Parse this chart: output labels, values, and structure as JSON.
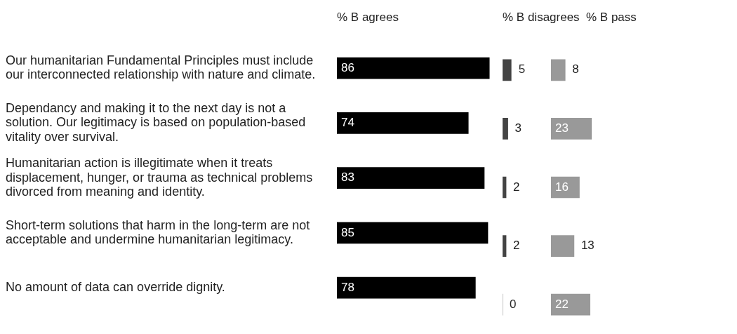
{
  "chart_data": [
    {
      "type": "bar",
      "orientation": "horizontal",
      "title": "% B agrees",
      "categories": [
        "Our humanitarian Fundamental Principles must include our interconnected relationship with nature and climate.",
        "Dependancy and making it to the next day is not a solution. Our legitimacy is based on population-based vitality over survival.",
        "Humanitarian action is illegitimate when it treats displacement, hunger, or trauma as technical problems divorced from meaning and identity.",
        "Short-term solutions that harm in the long-term are not acceptable and undermine humanitarian legitimacy.",
        "No amount of data can override dignity."
      ],
      "values": [
        86,
        74,
        83,
        85,
        78
      ],
      "color": "#000000",
      "data_labels": true,
      "tick_labels": "y",
      "grid": false
    },
    {
      "type": "bar",
      "orientation": "horizontal",
      "title": "% B disagrees",
      "categories": [
        null,
        null,
        null,
        null,
        null
      ],
      "values": [
        5,
        3,
        2,
        2,
        0
      ],
      "color": "#444444",
      "data_labels": true,
      "tick_labels": false,
      "grid": false
    },
    {
      "type": "bar",
      "orientation": "horizontal",
      "title": "% B pass",
      "categories": [
        null,
        null,
        null,
        null,
        null
      ],
      "values": [
        8,
        23,
        16,
        13,
        22
      ],
      "color": "#999999",
      "data_labels": true,
      "tick_labels": false,
      "grid": false
    }
  ]
}
